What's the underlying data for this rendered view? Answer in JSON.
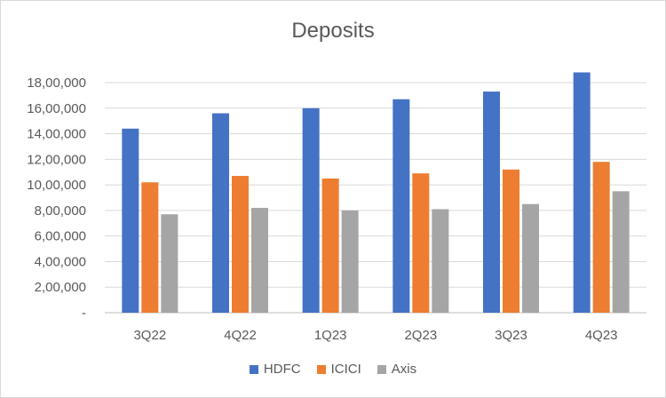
{
  "chart_data": {
    "type": "bar",
    "title": "Deposits",
    "xlabel": "",
    "ylabel": "",
    "categories": [
      "3Q22",
      "4Q22",
      "1Q23",
      "2Q23",
      "3Q23",
      "4Q23"
    ],
    "series": [
      {
        "name": "HDFC",
        "color": "#4472C4",
        "values": [
          1440000,
          1560000,
          1600000,
          1670000,
          1730000,
          1880000
        ]
      },
      {
        "name": "ICICI",
        "color": "#ED7D31",
        "values": [
          1020000,
          1070000,
          1050000,
          1090000,
          1120000,
          1180000
        ]
      },
      {
        "name": "Axis",
        "color": "#A5A5A5",
        "values": [
          770000,
          820000,
          800000,
          810000,
          850000,
          950000
        ]
      }
    ],
    "ylim": [
      0,
      1800000
    ],
    "yticks": [
      0,
      200000,
      400000,
      600000,
      800000,
      1000000,
      1200000,
      1400000,
      1600000,
      1800000
    ],
    "ytick_labels": [
      "-",
      "2,00,000",
      "4,00,000",
      "6,00,000",
      "8,00,000",
      "10,00,000",
      "12,00,000",
      "14,00,000",
      "16,00,000",
      "18,00,000"
    ],
    "grid": true,
    "legend_position": "bottom"
  }
}
